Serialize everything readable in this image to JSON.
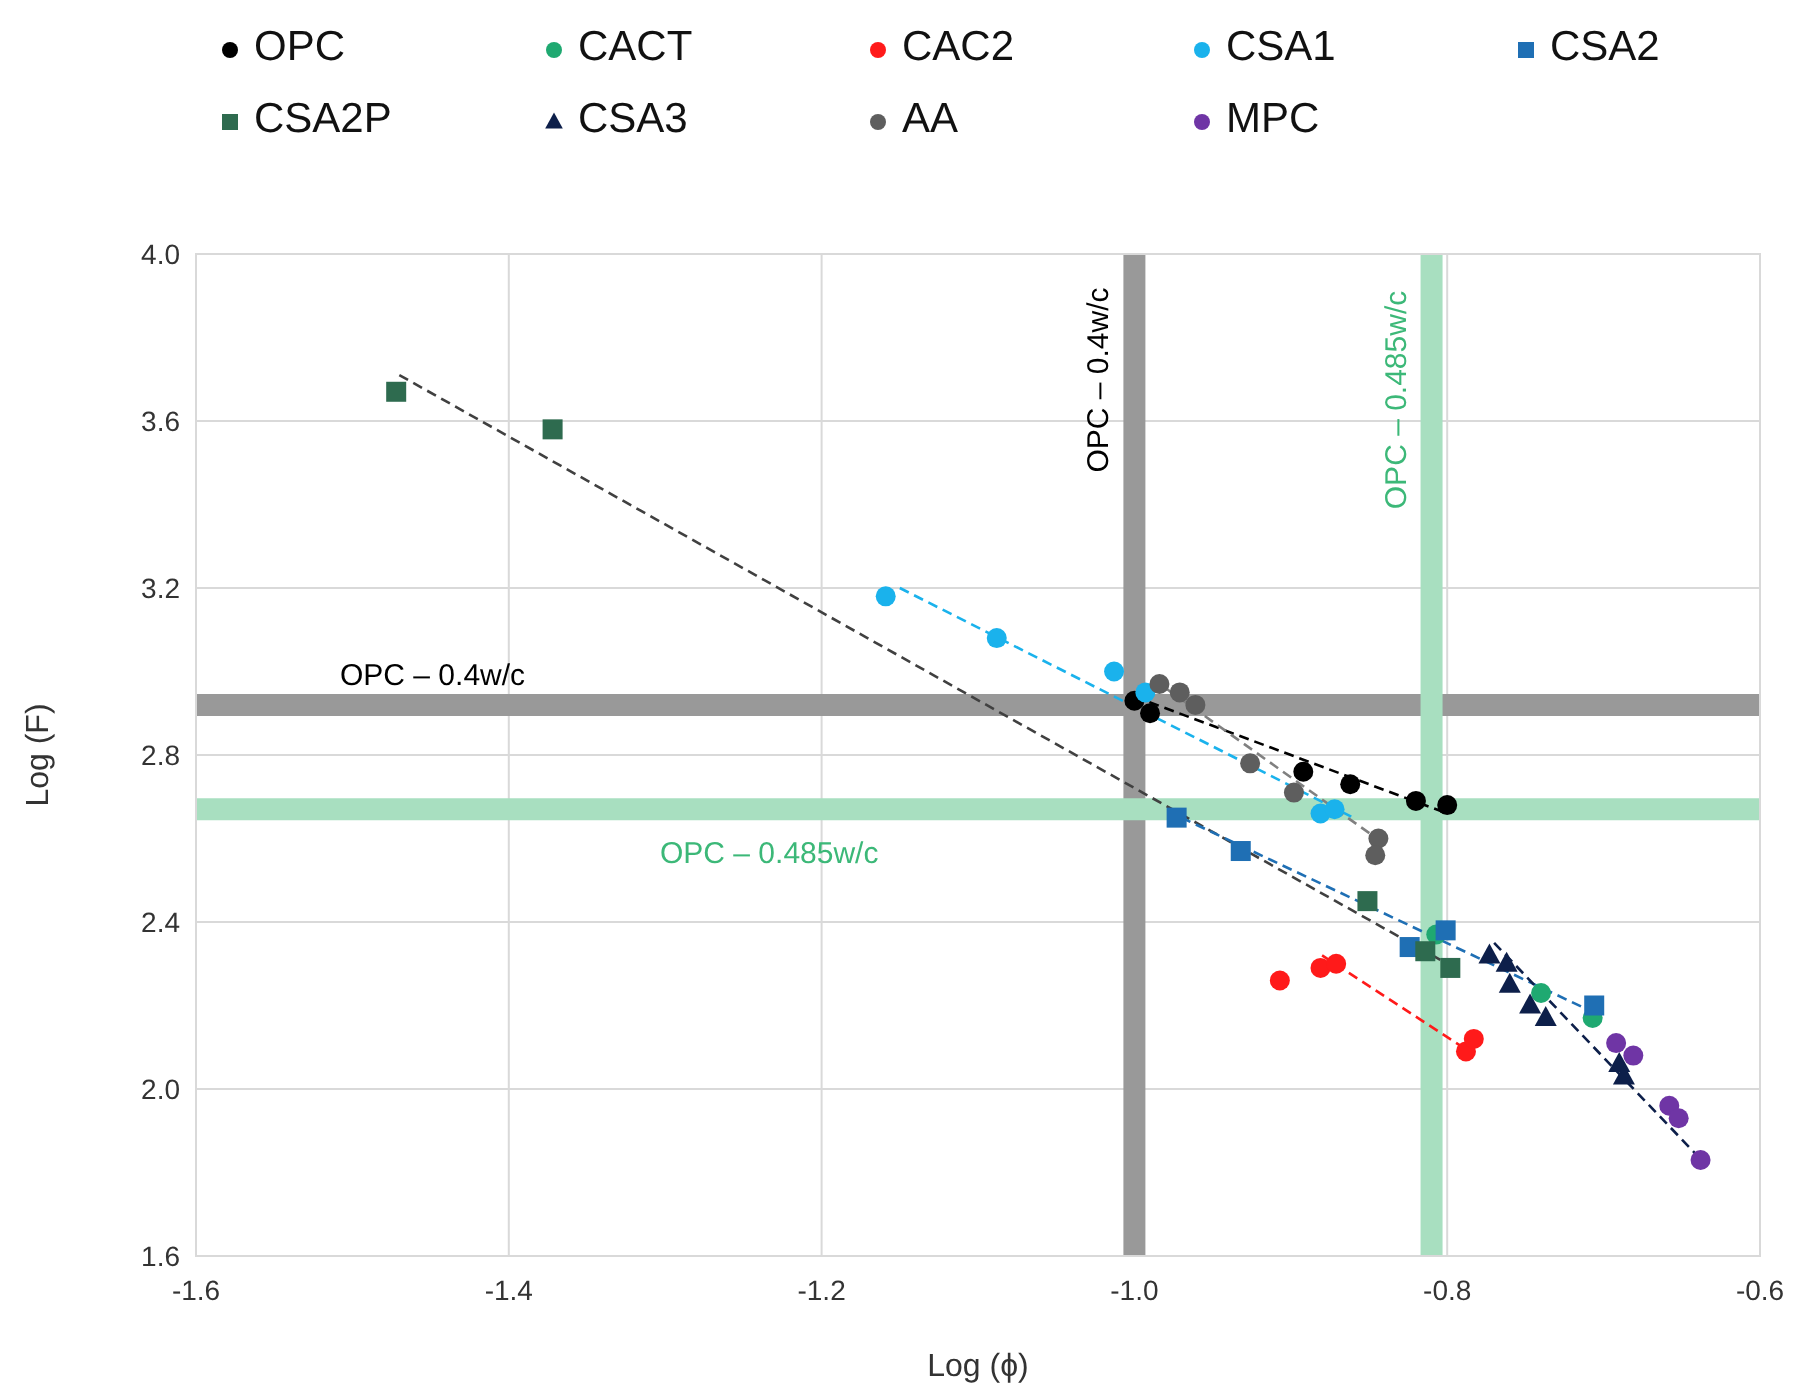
{
  "chart_data": {
    "type": "scatter",
    "xlabel": "Log (ϕ)",
    "ylabel": "Log (F)",
    "xlim": [
      -1.6,
      -0.6
    ],
    "ylim": [
      1.6,
      4.0
    ],
    "xticks": [
      {
        "value": -1.6,
        "label": "-1.6"
      },
      {
        "value": -1.4,
        "label": "-1.4"
      },
      {
        "value": -1.2,
        "label": "-1.2"
      },
      {
        "value": -1.0,
        "label": "-1.0"
      },
      {
        "value": -0.8,
        "label": "-0.8"
      },
      {
        "value": -0.6,
        "label": "-0.6"
      }
    ],
    "yticks": [
      {
        "value": 1.6,
        "label": "1.6"
      },
      {
        "value": 2.0,
        "label": "2.0"
      },
      {
        "value": 2.4,
        "label": "2.4"
      },
      {
        "value": 2.8,
        "label": "2.8"
      },
      {
        "value": 3.2,
        "label": "3.2"
      },
      {
        "value": 3.6,
        "label": "3.6"
      },
      {
        "value": 4.0,
        "label": "4.0"
      }
    ],
    "grid": true,
    "legend": "top",
    "line_style": "dashed",
    "ref_lines": [
      {
        "axis": "x",
        "value": -1.0,
        "label": "OPC – 0.4w/c",
        "color": "#999999"
      },
      {
        "axis": "y",
        "value": 2.92,
        "label": "OPC – 0.4w/c",
        "color": "#999999"
      },
      {
        "axis": "x",
        "value": -0.81,
        "label": "OPC – 0.485w/c",
        "color": "#a8dfc0"
      },
      {
        "axis": "y",
        "value": 2.67,
        "label": "OPC – 0.485w/c",
        "color": "#a8dfc0"
      }
    ],
    "series": [
      {
        "type": "line",
        "color": "#000000",
        "marker": "none",
        "x": [
          -1.0,
          -0.8
        ],
        "values": [
          2.94,
          2.66
        ]
      },
      {
        "type": "line",
        "color": "#404040",
        "marker": "none",
        "x": [
          -1.47,
          -0.8
        ],
        "values": [
          3.71,
          2.3
        ]
      },
      {
        "type": "line",
        "color": "#1ab2ec",
        "marker": "none",
        "x": [
          -1.15,
          -0.86
        ],
        "values": [
          3.2,
          2.65
        ]
      },
      {
        "type": "line",
        "color": "#1f6fb4",
        "marker": "none",
        "x": [
          -0.97,
          -0.71
        ],
        "values": [
          2.65,
          2.19
        ]
      },
      {
        "type": "line",
        "color": "#808080",
        "marker": "none",
        "x": [
          -0.98,
          -0.845
        ],
        "values": [
          2.96,
          2.6
        ]
      },
      {
        "type": "line",
        "color": "#ff1a1a",
        "marker": "none",
        "x": [
          -0.88,
          -0.79
        ],
        "values": [
          2.32,
          2.1
        ]
      },
      {
        "type": "line",
        "color": "#0d1f4a",
        "marker": "none",
        "x": [
          -0.77,
          -0.64
        ],
        "values": [
          2.35,
          1.84
        ]
      },
      {
        "name": "OPC",
        "color": "#000000",
        "marker": "circle",
        "x": [
          -1.0,
          -0.99,
          -0.892,
          -0.862,
          -0.82,
          -0.8
        ],
        "values": [
          2.93,
          2.9,
          2.76,
          2.73,
          2.69,
          2.68
        ]
      },
      {
        "name": "CACT",
        "color": "#1fa971",
        "marker": "circle",
        "x": [
          -0.807,
          -0.74,
          -0.707
        ],
        "values": [
          2.37,
          2.23,
          2.17
        ]
      },
      {
        "name": "CAC2",
        "color": "#ff1a1a",
        "marker": "circle",
        "x": [
          -0.907,
          -0.881,
          -0.871,
          -0.788,
          -0.783
        ],
        "values": [
          2.26,
          2.29,
          2.3,
          2.09,
          2.12
        ]
      },
      {
        "name": "CSA1",
        "color": "#1ab2ec",
        "marker": "circle",
        "x": [
          -1.159,
          -1.088,
          -1.013,
          -0.993,
          -0.881,
          -0.872
        ],
        "values": [
          3.18,
          3.08,
          3.0,
          2.95,
          2.66,
          2.67
        ]
      },
      {
        "name": "CSA2",
        "color": "#1f6fb4",
        "marker": "square",
        "x": [
          -0.973,
          -0.932,
          -0.824,
          -0.801,
          -0.706
        ],
        "values": [
          2.65,
          2.57,
          2.34,
          2.38,
          2.2
        ]
      },
      {
        "name": "CSA2P",
        "color": "#2e6b4f",
        "marker": "square",
        "x": [
          -1.472,
          -1.372,
          -0.851,
          -0.814,
          -0.798
        ],
        "values": [
          3.67,
          3.58,
          2.45,
          2.33,
          2.29
        ]
      },
      {
        "name": "CSA3",
        "color": "#0d1f4a",
        "marker": "triangle",
        "x": [
          -0.773,
          -0.762,
          -0.76,
          -0.747,
          -0.737,
          -0.69,
          -0.687
        ],
        "values": [
          2.32,
          2.3,
          2.25,
          2.2,
          2.17,
          2.06,
          2.03
        ]
      },
      {
        "name": "AA",
        "color": "#5e5e5e",
        "marker": "circle",
        "x": [
          -0.984,
          -0.971,
          -0.961,
          -0.926,
          -0.898,
          -0.844,
          -0.846
        ],
        "values": [
          2.97,
          2.95,
          2.92,
          2.78,
          2.71,
          2.6,
          2.56
        ]
      },
      {
        "name": "MPC",
        "color": "#6f35a5",
        "marker": "circle",
        "x": [
          -0.692,
          -0.681,
          -0.658,
          -0.652,
          -0.638
        ],
        "values": [
          2.11,
          2.08,
          1.96,
          1.93,
          1.83
        ]
      }
    ]
  }
}
